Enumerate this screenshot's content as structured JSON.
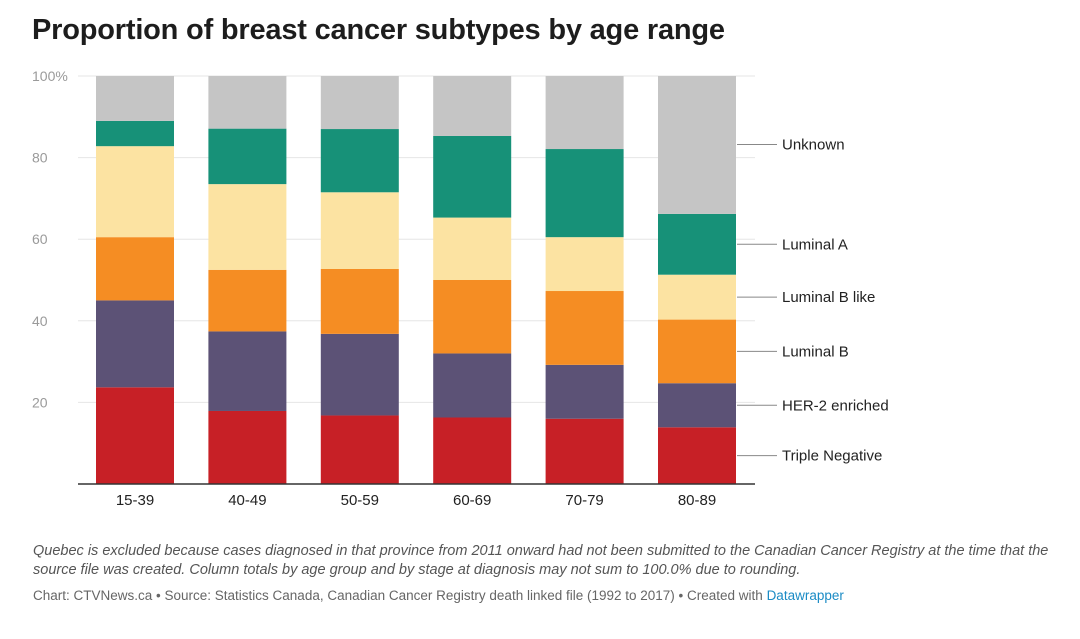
{
  "title": "Proportion of breast cancer subtypes by age range",
  "notes": "Quebec is excluded because cases diagnosed in that province from 2011 onward had not been submitted to the Canadian Cancer Registry at the time that the source file was created. Column totals by age group and by stage at diagnosis may not sum to 100.0% due to rounding.",
  "footer": {
    "text": "Chart: CTVNews.ca • Source: Statistics Canada, Canadian Cancer Registry death linked file (1992 to 2017) • Created with ",
    "link": "Datawrapper"
  },
  "chart_data": {
    "type": "bar",
    "stacked": true,
    "categories": [
      "15-39",
      "40-49",
      "50-59",
      "60-69",
      "70-79",
      "80-89"
    ],
    "series": [
      {
        "name": "Triple Negative",
        "color": "#c72026",
        "values": [
          23.7,
          17.9,
          16.8,
          16.3,
          16.0,
          13.9
        ]
      },
      {
        "name": "HER-2 enriched",
        "color": "#5c5276",
        "values": [
          21.3,
          19.5,
          20.0,
          15.7,
          13.2,
          10.8
        ]
      },
      {
        "name": "Luminal B",
        "color": "#f58d23",
        "values": [
          15.5,
          15.1,
          15.9,
          18.0,
          18.1,
          15.6
        ]
      },
      {
        "name": "Luminal B like",
        "color": "#fce3a2",
        "values": [
          22.3,
          21.0,
          18.8,
          15.3,
          13.2,
          11.0
        ]
      },
      {
        "name": "Luminal A",
        "color": "#179178",
        "values": [
          6.2,
          13.6,
          15.5,
          20.0,
          21.6,
          14.9
        ]
      },
      {
        "name": "Unknown",
        "color": "#c5c5c5",
        "values": [
          11.0,
          12.9,
          13.0,
          14.7,
          17.9,
          33.8
        ]
      }
    ],
    "yticks": [
      "100%",
      "80",
      "60",
      "40",
      "20"
    ],
    "ylim": [
      0,
      100
    ],
    "grid": true,
    "legend": "direct labels right"
  }
}
